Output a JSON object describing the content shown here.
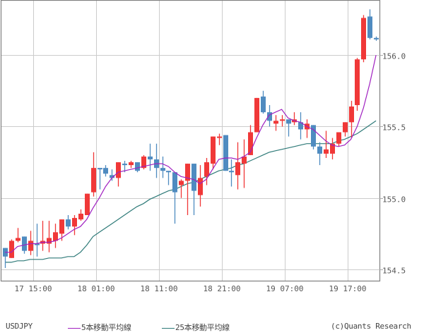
{
  "chart_data": {
    "type": "candlestick",
    "title": "",
    "symbol": "USDJPY",
    "xlabel": "",
    "ylabel": "",
    "ylim": [
      154.42,
      156.38
    ],
    "y_ticks": [
      154.5,
      155.0,
      155.5,
      156.0
    ],
    "y_tick_labels": [
      "154.5",
      "155.0",
      "155.5",
      "156.0"
    ],
    "x_tick_labels": [
      "17 15:00",
      "18 01:00",
      "18 11:00",
      "18 21:00",
      "19 07:00",
      "19 17:00"
    ],
    "x_tick_index": [
      5,
      15,
      25,
      35,
      45,
      55
    ],
    "grid": true,
    "colors": {
      "up": "#f03838",
      "down": "#4f8bc0",
      "ma5": "#a020c0",
      "ma25": "#2e7a78",
      "grid": "#cccccc",
      "axis": "#808080"
    },
    "candles": [
      [
        154.65,
        154.59,
        154.65,
        154.51
      ],
      [
        154.58,
        154.7,
        154.71,
        154.58
      ],
      [
        154.7,
        154.72,
        154.79,
        154.69
      ],
      [
        154.73,
        154.63,
        154.73,
        154.61
      ],
      [
        154.63,
        154.7,
        154.77,
        154.6
      ],
      [
        154.68,
        154.67,
        154.82,
        154.59
      ],
      [
        154.68,
        154.7,
        154.84,
        154.63
      ],
      [
        154.68,
        154.72,
        154.84,
        154.62
      ],
      [
        154.7,
        154.76,
        154.82,
        154.65
      ],
      [
        154.75,
        154.85,
        154.85,
        154.7
      ],
      [
        154.85,
        154.8,
        154.88,
        154.78
      ],
      [
        154.8,
        154.86,
        154.88,
        154.74
      ],
      [
        154.85,
        154.89,
        154.92,
        154.84
      ],
      [
        154.88,
        155.03,
        155.03,
        154.88
      ],
      [
        155.04,
        155.21,
        155.32,
        155.01
      ],
      [
        155.21,
        155.2,
        155.21,
        155.06
      ],
      [
        155.21,
        155.17,
        155.23,
        155.15
      ],
      [
        155.16,
        155.14,
        155.2,
        155.12
      ],
      [
        155.14,
        155.25,
        155.25,
        155.08
      ],
      [
        155.24,
        155.23,
        155.26,
        155.18
      ],
      [
        155.23,
        155.25,
        155.26,
        155.21
      ],
      [
        155.25,
        155.19,
        155.25,
        155.18
      ],
      [
        155.21,
        155.29,
        155.3,
        155.2
      ],
      [
        155.29,
        155.27,
        155.38,
        155.19
      ],
      [
        155.27,
        155.21,
        155.38,
        155.14
      ],
      [
        155.21,
        155.19,
        155.29,
        155.14
      ],
      [
        155.19,
        155.18,
        155.19,
        155.09
      ],
      [
        155.18,
        155.04,
        155.18,
        154.82
      ],
      [
        155.09,
        155.12,
        155.13,
        155.0
      ],
      [
        155.12,
        155.24,
        155.24,
        154.88
      ],
      [
        155.24,
        155.05,
        155.24,
        154.88
      ],
      [
        155.02,
        155.14,
        155.23,
        154.94
      ],
      [
        155.15,
        155.25,
        155.28,
        155.09
      ],
      [
        155.24,
        155.43,
        155.43,
        155.2
      ],
      [
        155.43,
        155.43,
        155.45,
        155.37
      ],
      [
        155.44,
        155.19,
        155.44,
        155.19
      ],
      [
        155.19,
        155.18,
        155.27,
        155.08
      ],
      [
        155.16,
        155.25,
        155.39,
        155.06
      ],
      [
        155.24,
        155.29,
        155.41,
        155.07
      ],
      [
        155.3,
        155.46,
        155.51,
        155.3
      ],
      [
        155.46,
        155.7,
        155.7,
        155.46
      ],
      [
        155.71,
        155.6,
        155.75,
        155.59
      ],
      [
        155.6,
        155.54,
        155.65,
        155.5
      ],
      [
        155.52,
        155.54,
        155.58,
        155.47
      ],
      [
        155.54,
        155.55,
        155.58,
        155.5
      ],
      [
        155.55,
        155.52,
        155.55,
        155.43
      ],
      [
        155.53,
        155.55,
        155.6,
        155.51
      ],
      [
        155.53,
        155.48,
        155.6,
        155.41
      ],
      [
        155.48,
        155.52,
        155.55,
        155.42
      ],
      [
        155.51,
        155.36,
        155.51,
        155.34
      ],
      [
        155.36,
        155.31,
        155.39,
        155.23
      ],
      [
        155.31,
        155.34,
        155.47,
        155.28
      ],
      [
        155.31,
        155.38,
        155.42,
        155.27
      ],
      [
        155.38,
        155.46,
        155.46,
        155.36
      ],
      [
        155.46,
        155.53,
        155.53,
        155.43
      ],
      [
        155.53,
        155.64,
        155.68,
        155.42
      ],
      [
        155.65,
        155.97,
        155.98,
        155.61
      ],
      [
        155.97,
        156.26,
        156.28,
        155.95
      ],
      [
        156.27,
        156.12,
        156.32,
        156.11
      ],
      [
        156.12,
        156.11,
        156.13,
        156.1
      ]
    ],
    "candle_format": [
      "open",
      "close",
      "high",
      "low"
    ],
    "series": [
      {
        "name": "5本移動平均線",
        "values": [
          154.62,
          154.62,
          154.66,
          154.67,
          154.68,
          154.68,
          154.69,
          154.69,
          154.7,
          154.72,
          154.75,
          154.78,
          154.8,
          154.85,
          154.93,
          155.0,
          155.08,
          155.14,
          155.18,
          155.19,
          155.2,
          155.21,
          155.22,
          155.23,
          155.24,
          155.24,
          155.22,
          155.18,
          155.15,
          155.14,
          155.13,
          155.1,
          155.13,
          155.2,
          155.27,
          155.28,
          155.28,
          155.27,
          155.29,
          155.32,
          155.42,
          155.51,
          155.58,
          155.6,
          155.62,
          155.56,
          155.54,
          155.53,
          155.5,
          155.48,
          155.44,
          155.4,
          155.37,
          155.36,
          155.37,
          155.41,
          155.5,
          155.63,
          155.8,
          156.0
        ]
      },
      {
        "name": "25本移動平均線",
        "values": [
          154.55,
          154.55,
          154.56,
          154.56,
          154.57,
          154.57,
          154.57,
          154.58,
          154.58,
          154.58,
          154.59,
          154.59,
          154.62,
          154.67,
          154.73,
          154.76,
          154.79,
          154.82,
          154.85,
          154.88,
          154.91,
          154.94,
          154.96,
          154.99,
          155.01,
          155.03,
          155.05,
          155.06,
          155.08,
          155.1,
          155.11,
          155.13,
          155.15,
          155.17,
          155.19,
          155.2,
          155.21,
          155.23,
          155.24,
          155.26,
          155.28,
          155.3,
          155.32,
          155.33,
          155.34,
          155.35,
          155.36,
          155.37,
          155.38,
          155.38,
          155.38,
          155.38,
          155.38,
          155.4,
          155.41,
          155.43,
          155.45,
          155.48,
          155.51,
          155.54
        ]
      }
    ]
  },
  "legend": {
    "symbol": "USDJPY",
    "ma5_label": "5本移動平均線",
    "ma25_label": "25本移動平均線",
    "credit": "(c)Quants Research"
  }
}
